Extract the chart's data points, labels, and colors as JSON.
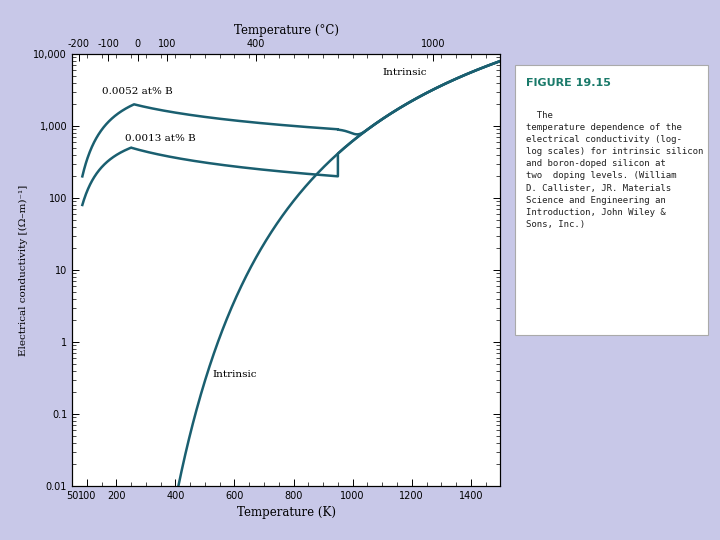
{
  "background_color": "#c8c8e8",
  "plot_bg_color": "#ffffff",
  "curve_color": "#1a5f70",
  "curve_linewidth": 1.8,
  "xmin": 50,
  "xmax": 1500,
  "ymin": 0.01,
  "ymax": 10000,
  "xlabel": "Temperature (K)",
  "ylabel": "Electrical conductivity [(Ω–m)⁻¹]",
  "top_xlabel": "Temperature (°C)",
  "label_052": "0.0052 at% B",
  "label_013": "0.0013 at% B",
  "label_intrinsic_top": "Intrinsic",
  "label_intrinsic_bottom": "Intrinsic",
  "text_color_label": "#1a7a6a",
  "text_color_body": "#222222",
  "fig_label": "FIGURE 19.15",
  "caption_line1": "  The",
  "caption_rest": "temperature dependence of the\nelectrical conductivity (log-\nlog scales) for intrinsic silicon\nand boron-doped silicon at\ntwo  doping levels. (William\nD. Callister, JR. ",
  "caption_italic": "Materials\nScience and Engineering an\nIntroduction",
  "caption_end": ", John Wiley &\nSons, Inc.)"
}
